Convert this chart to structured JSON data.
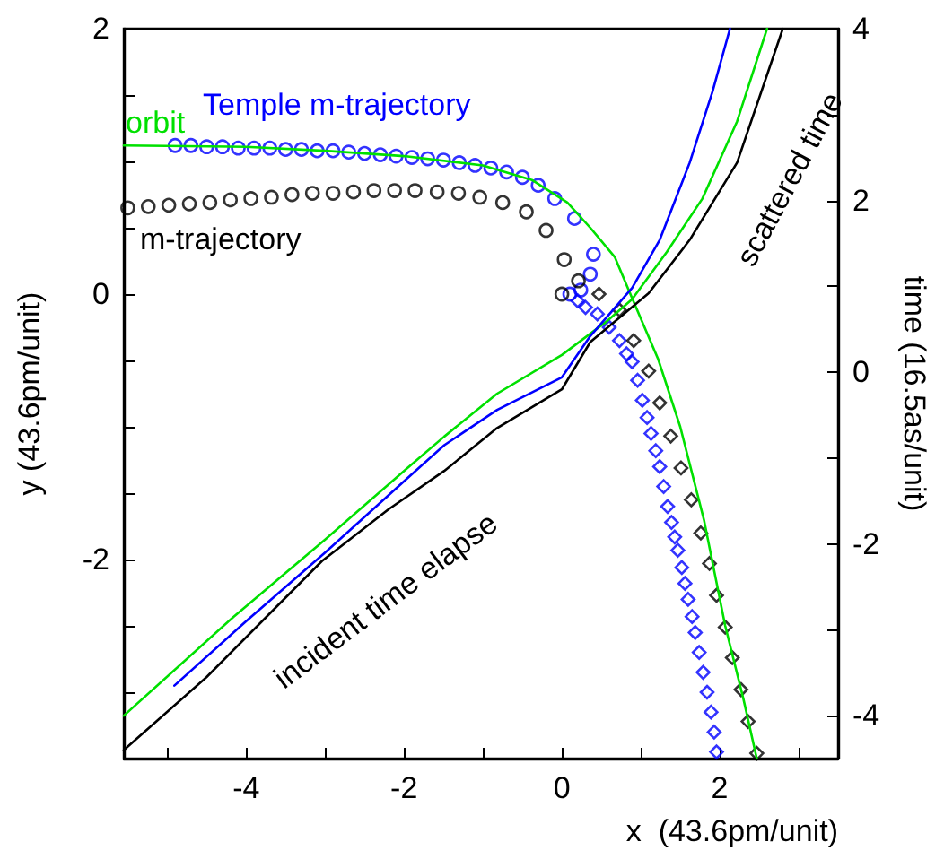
{
  "chart_data": {
    "type": "line",
    "xlabel": "x  (43.6pm/unit)",
    "ylabel": "y (43.6pm/unit)",
    "y2label": "time (16.5as/unit)",
    "annotations": [
      "incident time elapse",
      "scattered time"
    ],
    "xlim": [
      -5.55,
      3.5
    ],
    "ylim": [
      -3.5,
      2
    ],
    "y2lim": [
      -4.5,
      4
    ],
    "xticks": [
      {
        "value": -5,
        "label": null
      },
      -4,
      {
        "value": -3,
        "label": null
      },
      -2,
      {
        "value": -1,
        "label": null
      },
      0,
      {
        "value": 1,
        "label": null
      },
      2,
      {
        "value": 3,
        "label": null
      }
    ],
    "yticks": [
      {
        "value": -3,
        "label": null
      },
      {
        "value": -2.5,
        "label": null
      },
      -2,
      {
        "value": -1.5,
        "label": null
      },
      {
        "value": -1,
        "label": null
      },
      {
        "value": -0.5,
        "label": null
      },
      0,
      {
        "value": 0.5,
        "label": null
      },
      {
        "value": 1,
        "label": null
      },
      {
        "value": 1.5,
        "label": null
      },
      2
    ],
    "y2ticks": [
      -4,
      {
        "value": -3,
        "label": null
      },
      -2,
      {
        "value": -1,
        "label": null
      },
      0,
      {
        "value": 1,
        "label": null
      },
      2,
      {
        "value": 3,
        "label": null
      },
      4
    ],
    "legend": false,
    "grid": false,
    "series": [
      {
        "name": "orbit",
        "type": "line",
        "marker": "none",
        "color": "#00e000",
        "x": [
          -5.55,
          -4,
          -3,
          -2,
          -1,
          -0.38,
          0.07,
          0.36,
          0.67,
          0.89,
          1.22,
          1.5,
          1.8,
          2.07,
          2.3,
          2.47
        ],
        "values": [
          1.12,
          1.11,
          1.08,
          1.04,
          0.97,
          0.86,
          0.69,
          0.5,
          0.28,
          -0.03,
          -0.49,
          -1.0,
          -1.7,
          -2.5,
          -3.05,
          -3.5
        ]
      },
      {
        "name": "Temple m-trajectory",
        "type": "scatter",
        "marker": "circle",
        "color": "#0000ff",
        "x": [
          -4.9,
          -4.7,
          -4.5,
          -4.3,
          -4.1,
          -3.9,
          -3.7,
          -3.5,
          -3.3,
          -3.1,
          -2.9,
          -2.7,
          -2.5,
          -2.3,
          -2.1,
          -1.9,
          -1.7,
          -1.5,
          -1.3,
          -1.1,
          -0.9,
          -0.7,
          -0.5,
          -0.3,
          -0.09,
          0.16,
          0.4,
          0.36,
          0.24,
          0.1
        ],
        "values": [
          1.12,
          1.12,
          1.11,
          1.11,
          1.1,
          1.1,
          1.1,
          1.09,
          1.09,
          1.08,
          1.08,
          1.07,
          1.06,
          1.05,
          1.04,
          1.03,
          1.02,
          1.01,
          0.99,
          0.97,
          0.95,
          0.92,
          0.88,
          0.82,
          0.72,
          0.57,
          0.3,
          0.15,
          0.03,
          0.0
        ]
      },
      {
        "type": "scatter",
        "marker": "diamond",
        "color": "#0000ff",
        "x": [
          0.2,
          0.3,
          0.45,
          0.6,
          0.73,
          0.82,
          0.89,
          0.96,
          1.02,
          1.08,
          1.13,
          1.19,
          1.24,
          1.29,
          1.34,
          1.39,
          1.43,
          1.47,
          1.52,
          1.56,
          1.6,
          1.65,
          1.69,
          1.74,
          1.79,
          1.84,
          1.89,
          1.93,
          1.96
        ],
        "values": [
          -0.05,
          -0.1,
          -0.15,
          -0.25,
          -0.35,
          -0.45,
          -0.51,
          -0.65,
          -0.8,
          -0.93,
          -1.05,
          -1.18,
          -1.3,
          -1.45,
          -1.6,
          -1.72,
          -1.83,
          -1.93,
          -2.06,
          -2.18,
          -2.3,
          -2.43,
          -2.55,
          -2.7,
          -2.85,
          -3.0,
          -3.15,
          -3.3,
          -3.45
        ]
      },
      {
        "name": "m-trajectory",
        "type": "scatter",
        "marker": "circle",
        "color": "#000000",
        "x": [
          -5.5,
          -5.24,
          -4.98,
          -4.72,
          -4.46,
          -4.2,
          -3.94,
          -3.68,
          -3.42,
          -3.16,
          -2.9,
          -2.64,
          -2.38,
          -2.12,
          -1.86,
          -1.58,
          -1.31,
          -1.04,
          -0.75,
          -0.45,
          -0.2,
          0.03,
          0.21,
          0
        ],
        "values": [
          0.65,
          0.66,
          0.67,
          0.68,
          0.69,
          0.71,
          0.72,
          0.73,
          0.75,
          0.76,
          0.76,
          0.77,
          0.78,
          0.78,
          0.78,
          0.77,
          0.76,
          0.73,
          0.69,
          0.62,
          0.48,
          0.26,
          0.1,
          0
        ]
      },
      {
        "type": "scatter",
        "marker": "diamond",
        "color": "#000000",
        "x": [
          0.47,
          0.73,
          0.91,
          1.1,
          1.24,
          1.38,
          1.51,
          1.64,
          1.76,
          1.87,
          1.96,
          2.07,
          2.16,
          2.27,
          2.36,
          2.47
        ],
        "values": [
          0,
          -0.12,
          -0.35,
          -0.58,
          -0.82,
          -1.07,
          -1.31,
          -1.55,
          -1.8,
          -2.03,
          -2.27,
          -2.51,
          -2.74,
          -2.98,
          -3.22,
          -3.46
        ]
      },
      {
        "type": "line",
        "axis": "y2",
        "marker": "none",
        "color": "#00e000",
        "x": [
          -5.55,
          -4.16,
          -3,
          -2,
          -1.49,
          -0.82,
          0,
          0.58,
          0.89,
          1.33,
          1.78,
          2.22,
          2.6
        ],
        "values": [
          -4.0,
          -2.85,
          -1.95,
          -1.15,
          -0.75,
          -0.25,
          0.2,
          0.6,
          0.85,
          1.4,
          2.02,
          2.92,
          4.0
        ]
      },
      {
        "type": "line",
        "axis": "y2",
        "marker": "none",
        "color": "#0000ff",
        "x": [
          -4.91,
          -4,
          -3,
          -2,
          -1.49,
          -0.82,
          0,
          0.36,
          0.89,
          1.24,
          1.62,
          1.91,
          2.13
        ],
        "values": [
          -3.65,
          -2.9,
          -2.1,
          -1.27,
          -0.85,
          -0.44,
          -0.06,
          0.42,
          0.98,
          1.54,
          2.44,
          3.27,
          4.0
        ]
      },
      {
        "type": "line",
        "axis": "y2",
        "marker": "none",
        "color": "#000000",
        "x": [
          -5.55,
          -4.5,
          -3.04,
          -2.2,
          -1.49,
          -0.82,
          0,
          0.36,
          1.1,
          1.62,
          2.22,
          2.8
        ],
        "values": [
          -4.4,
          -3.55,
          -2.2,
          -1.6,
          -1.15,
          -0.65,
          -0.2,
          0.35,
          0.92,
          1.54,
          2.44,
          4.0
        ]
      }
    ]
  }
}
